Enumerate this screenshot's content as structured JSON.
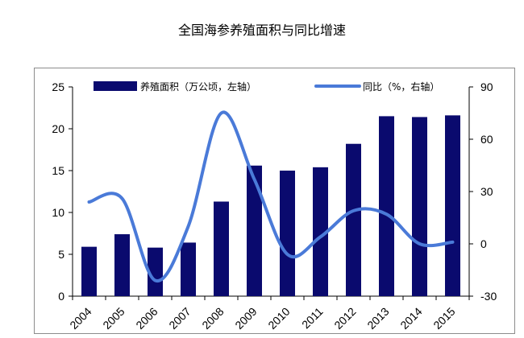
{
  "chart_data": {
    "type": "bar",
    "title": "全国海参养殖面积与同比增速",
    "categories": [
      "2004",
      "2005",
      "2006",
      "2007",
      "2008",
      "2009",
      "2010",
      "2011",
      "2012",
      "2013",
      "2014",
      "2015"
    ],
    "series": [
      {
        "name": "养殖面积（万公顷，左轴）",
        "type": "bar",
        "axis": "left",
        "color": "#0a0a6e",
        "values": [
          5.9,
          7.4,
          5.8,
          6.4,
          11.3,
          15.6,
          15.0,
          15.4,
          18.2,
          21.5,
          21.4,
          21.6
        ]
      },
      {
        "name": "同比（%，右轴）",
        "type": "line",
        "axis": "right",
        "color": "#4a7ad8",
        "values": [
          24,
          26,
          -21,
          10,
          75,
          37,
          -6,
          4,
          19,
          17,
          0,
          1
        ]
      }
    ],
    "left_axis": {
      "min": 0,
      "max": 25,
      "ticks": [
        0,
        5,
        10,
        15,
        20,
        25
      ]
    },
    "right_axis": {
      "min": -30,
      "max": 90,
      "ticks": [
        -30,
        0,
        30,
        60,
        90
      ]
    },
    "legend_position": "top",
    "grid": false
  }
}
